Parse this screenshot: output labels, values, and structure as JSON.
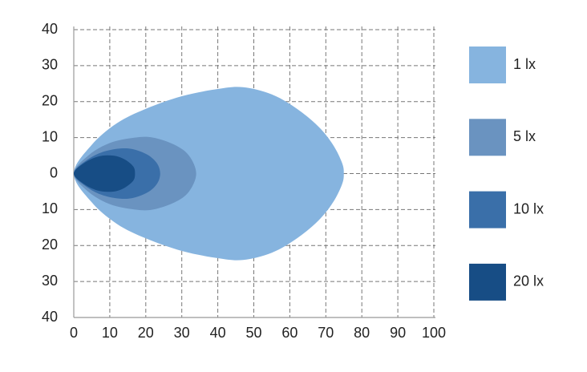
{
  "chart_data": {
    "type": "area",
    "xlim": [
      0,
      100
    ],
    "xticks": [
      0,
      10,
      20,
      30,
      40,
      50,
      60,
      70,
      80,
      90,
      100
    ],
    "ylim": [
      -40,
      40
    ],
    "yticks": [
      {
        "value": -40,
        "label": "40"
      },
      {
        "value": -30,
        "label": "30"
      },
      {
        "value": -20,
        "label": "20"
      },
      {
        "value": -10,
        "label": "10"
      },
      0,
      10,
      20,
      30,
      40
    ],
    "grid": true,
    "legend": "right",
    "series": [
      {
        "name": "1 lx",
        "color": "#86b4df",
        "x": [
          0,
          5,
          12,
          20,
          30,
          40,
          47,
          55,
          62,
          68,
          72,
          74.5,
          75,
          74.5,
          72,
          68,
          62,
          55,
          47,
          40,
          30,
          20,
          12,
          5
        ],
        "values": [
          0,
          8,
          14,
          18,
          21.5,
          23.5,
          24,
          22,
          18,
          13,
          8,
          3,
          0,
          -3,
          -8,
          -13,
          -18,
          -22,
          -24,
          -23.5,
          -21.5,
          -18,
          -14,
          -8
        ]
      },
      {
        "name": "5 lx",
        "color": "#6a93c0",
        "x": [
          0,
          4,
          10,
          17,
          22,
          28,
          32,
          34,
          32,
          28,
          22,
          17,
          10,
          4
        ],
        "values": [
          0,
          5,
          8.5,
          10,
          10,
          8,
          5,
          0,
          -5,
          -8,
          -10,
          -10,
          -8.5,
          -5
        ]
      },
      {
        "name": "10 lx",
        "color": "#3a6fa9",
        "x": [
          0,
          4,
          9,
          15,
          20,
          23,
          24,
          23,
          20,
          15,
          9,
          4
        ],
        "values": [
          0,
          4,
          6.3,
          7,
          5.5,
          3,
          0,
          -3,
          -5.5,
          -7,
          -6.3,
          -4
        ]
      },
      {
        "name": "20 lx",
        "color": "#174d85",
        "x": [
          0,
          3,
          7,
          11,
          14,
          16.5,
          17,
          16.5,
          14,
          11,
          7,
          3
        ],
        "values": [
          0,
          3,
          4.8,
          5,
          4,
          2,
          0,
          -2,
          -4,
          -5,
          -4.8,
          -3
        ]
      }
    ]
  }
}
